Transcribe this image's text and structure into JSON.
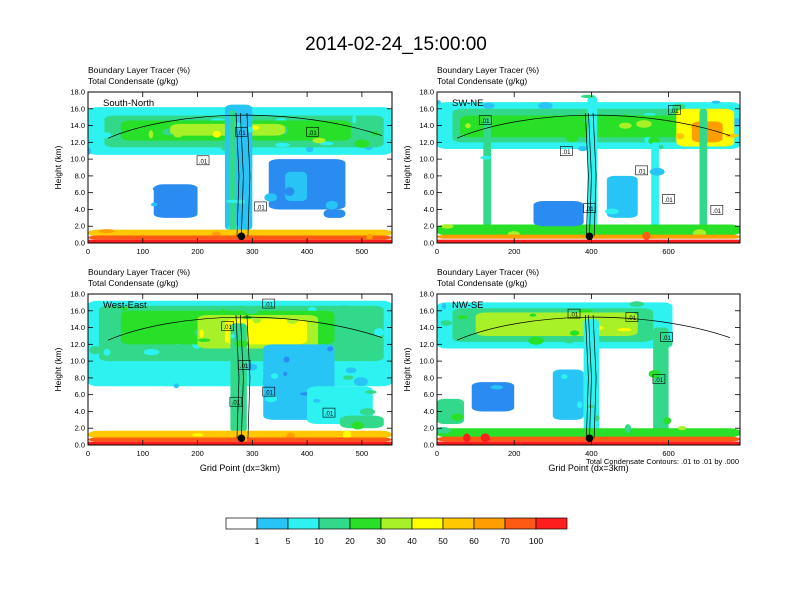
{
  "chart_data": {
    "type": "heatmap",
    "title": "2014-02-24_15:00:00",
    "shaded_field": "Boundary Layer Tracer (%)",
    "contour_field": "Total Condensate (g/kg)",
    "colorbar": {
      "levels": [
        "1",
        "5",
        "10",
        "20",
        "30",
        "40",
        "50",
        "60",
        "70",
        "100"
      ],
      "colors": [
        "#ffffff",
        "#2a8cf0",
        "#27c4f5",
        "#2ef2f0",
        "#33d98a",
        "#27e027",
        "#a8f028",
        "#ffff00",
        "#ffc800",
        "#ff9e00",
        "#ff5a14",
        "#ff1e1e"
      ]
    },
    "footnote": "Total Condensate Contours: .01 to .01 by .000",
    "panels": [
      {
        "id": "south-north",
        "line1": "Boundary Layer Tracer   (%)",
        "line2": "Total Condensate   (g/kg)",
        "label": "South-North",
        "ylabel": "Height (km)",
        "xlabel": "",
        "ylim": [
          0,
          18
        ],
        "yticks": [
          "0.0",
          "2.0",
          "4.0",
          "6.0",
          "8.0",
          "10.0",
          "12.0",
          "14.0",
          "16.0",
          "18.0"
        ],
        "xlim": [
          0,
          555
        ],
        "xticks": [
          0,
          100,
          200,
          300,
          400,
          500
        ],
        "xtick_labels": [
          "0",
          "100",
          "200",
          "300",
          "400",
          "500"
        ],
        "site_x": 280,
        "contour_labels": [
          {
            "x": 280,
            "y": 13.2,
            "text": ".01"
          },
          {
            "x": 410,
            "y": 13.2,
            "text": ".01"
          },
          {
            "x": 210,
            "y": 9.8,
            "text": ".01"
          },
          {
            "x": 315,
            "y": 4.3,
            "text": ".01"
          }
        ]
      },
      {
        "id": "sw-ne",
        "line1": "Boundary Layer Tracer   (%)",
        "line2": "Total Condensate   (g/kg)",
        "label": "SW-NE",
        "ylabel": "Height (km)",
        "xlabel": "",
        "ylim": [
          0,
          18
        ],
        "yticks": [
          "0.0",
          "2.0",
          "4.0",
          "6.0",
          "8.0",
          "10.0",
          "12.0",
          "14.0",
          "16.0",
          "18.0"
        ],
        "xlim": [
          0,
          785
        ],
        "xticks": [
          0,
          200,
          400,
          600
        ],
        "xtick_labels": [
          "0",
          "200",
          "400",
          "600"
        ],
        "site_x": 395,
        "contour_labels": [
          {
            "x": 125,
            "y": 14.6,
            "text": ".01"
          },
          {
            "x": 615,
            "y": 15.8,
            "text": ".01"
          },
          {
            "x": 335,
            "y": 10.9,
            "text": ".01"
          },
          {
            "x": 530,
            "y": 8.6,
            "text": ".01"
          },
          {
            "x": 600,
            "y": 5.2,
            "text": ".01"
          },
          {
            "x": 395,
            "y": 4.1,
            "text": ".01"
          },
          {
            "x": 725,
            "y": 3.9,
            "text": ".01"
          }
        ]
      },
      {
        "id": "west-east",
        "line1": "Boundary Layer Tracer   (%)",
        "line2": "Total Condensate   (g/kg)",
        "label": "West-East",
        "ylabel": "Height (km)",
        "xlabel": "Grid Point (dx=3km)",
        "ylim": [
          0,
          18
        ],
        "yticks": [
          "0.0",
          "2.0",
          "4.0",
          "6.0",
          "8.0",
          "10.0",
          "12.0",
          "14.0",
          "16.0",
          "18.0"
        ],
        "xlim": [
          0,
          555
        ],
        "xticks": [
          0,
          100,
          200,
          300,
          400,
          500
        ],
        "xtick_labels": [
          "0",
          "100",
          "200",
          "300",
          "400",
          "500"
        ],
        "site_x": 280,
        "contour_labels": [
          {
            "x": 330,
            "y": 16.8,
            "text": ".01"
          },
          {
            "x": 255,
            "y": 14.1,
            "text": ".01"
          },
          {
            "x": 285,
            "y": 9.5,
            "text": ".01"
          },
          {
            "x": 330,
            "y": 6.3,
            "text": ".01"
          },
          {
            "x": 270,
            "y": 5.1,
            "text": ".01"
          },
          {
            "x": 440,
            "y": 3.8,
            "text": ".01"
          }
        ]
      },
      {
        "id": "nw-se",
        "line1": "Boundary Layer Tracer   (%)",
        "line2": "Total Condensate   (g/kg)",
        "label": "NW-SE",
        "ylabel": "Height (km)",
        "xlabel": "Grid Point (dx=3km)",
        "ylim": [
          0,
          18
        ],
        "yticks": [
          "0.0",
          "2.0",
          "4.0",
          "6.0",
          "8.0",
          "10.0",
          "12.0",
          "14.0",
          "16.0",
          "18.0"
        ],
        "xlim": [
          0,
          785
        ],
        "xticks": [
          0,
          200,
          400,
          600
        ],
        "xtick_labels": [
          "0",
          "200",
          "400",
          "600"
        ],
        "site_x": 395,
        "contour_labels": [
          {
            "x": 355,
            "y": 15.6,
            "text": ".01"
          },
          {
            "x": 505,
            "y": 15.2,
            "text": ".01"
          },
          {
            "x": 595,
            "y": 12.8,
            "text": ".01"
          },
          {
            "x": 575,
            "y": 7.8,
            "text": ".01"
          }
        ]
      }
    ]
  }
}
